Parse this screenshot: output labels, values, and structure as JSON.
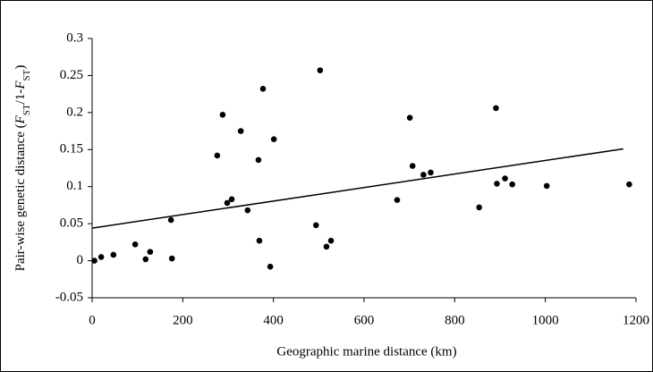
{
  "chart_data": {
    "type": "scatter",
    "xlabel": "Geographic marine distance (km)",
    "ylabel": [
      {
        "text": "Pair-wise genetic distance (",
        "style": "normal"
      },
      {
        "text": "F",
        "style": "italic"
      },
      {
        "text": "ST",
        "style": "sub"
      },
      {
        "text": "/1-",
        "style": "normal"
      },
      {
        "text": "F",
        "style": "italic"
      },
      {
        "text": "ST",
        "style": "sub"
      },
      {
        "text": ")",
        "style": "normal"
      }
    ],
    "xlim": [
      0,
      1200
    ],
    "ylim": [
      -0.05,
      0.3
    ],
    "xticks": [
      0,
      200,
      400,
      600,
      800,
      1000,
      1200
    ],
    "yticks": [
      -0.05,
      0,
      0.05,
      0.1,
      0.15,
      0.2,
      0.25,
      0.3
    ],
    "grid": false,
    "color": "#000000",
    "x": [
      5,
      20,
      47,
      95,
      118,
      128,
      174,
      176,
      276,
      288,
      298,
      308,
      328,
      343,
      367,
      369,
      377,
      393,
      401,
      494,
      503,
      517,
      527,
      673,
      701,
      707,
      731,
      747,
      854,
      891,
      893,
      911,
      927,
      1003,
      1185
    ],
    "values": [
      0,
      0.005,
      0.008,
      0.022,
      0.002,
      0.012,
      0.055,
      0.003,
      0.142,
      0.197,
      0.078,
      0.083,
      0.175,
      0.068,
      0.136,
      0.027,
      0.232,
      -0.008,
      0.164,
      0.048,
      0.257,
      0.019,
      0.027,
      0.082,
      0.193,
      0.128,
      0.116,
      0.119,
      0.072,
      0.206,
      0.104,
      0.111,
      0.103,
      0.101,
      0.103
    ],
    "trendline": {
      "x": [
        0,
        1172
      ],
      "y": [
        0.044,
        0.151
      ],
      "color": "#000000"
    }
  }
}
